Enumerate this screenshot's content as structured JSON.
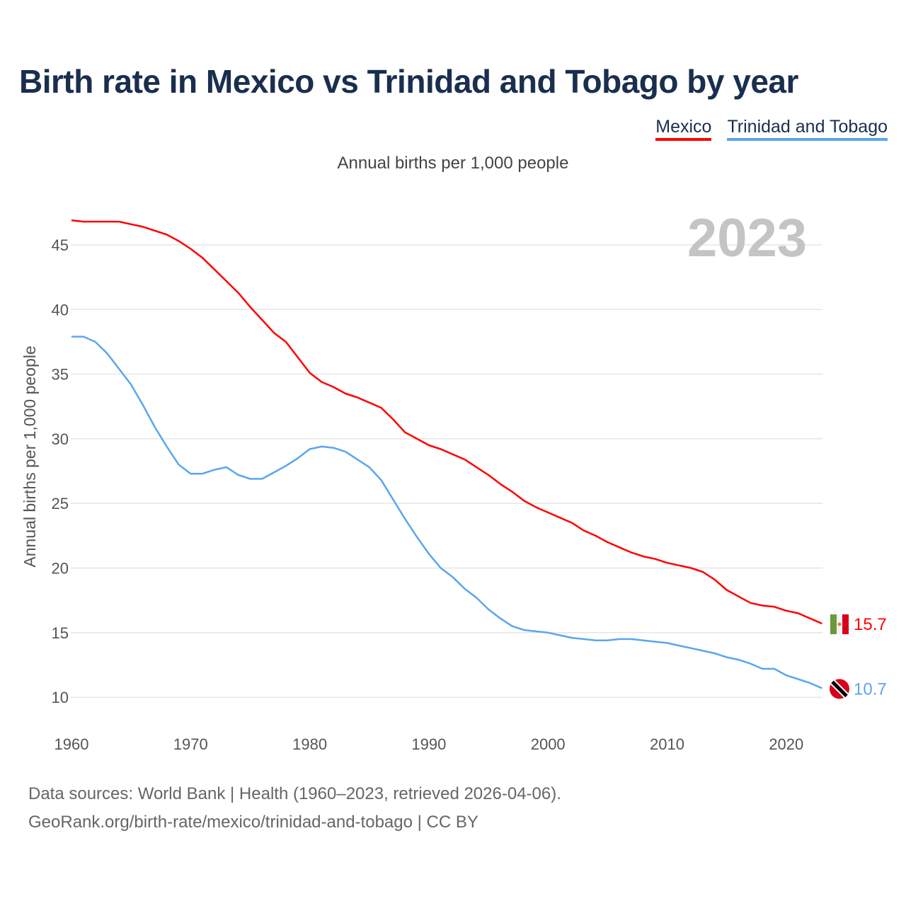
{
  "title": "Birth rate in Mexico vs Trinidad and Tobago by year",
  "subtitle": "Annual births per 1,000 people",
  "footer": {
    "line1": "Data sources: World Bank | Health (1960–2023, retrieved 2026-04-06).",
    "line2": "GeoRank.org/birth-rate/mexico/trinidad-and-tobago | CC BY"
  },
  "chart_data": {
    "type": "line",
    "title": "Birth rate in Mexico vs Trinidad and Tobago by year",
    "ylabel": "Annual births per 1,000 people",
    "xlabel": "",
    "year_label": "2023",
    "xlim": [
      1960,
      2023
    ],
    "ylim": [
      10,
      47
    ],
    "x_ticks": [
      1960,
      1970,
      1980,
      1990,
      2000,
      2010,
      2020
    ],
    "y_ticks": [
      10,
      15,
      20,
      25,
      30,
      35,
      40,
      45
    ],
    "grid": true,
    "legend_position": "top-right",
    "x_start": 1960,
    "series": [
      {
        "name": "Mexico",
        "color": "#ff0000",
        "end_label": "15.7",
        "flag": "mexico-flag",
        "values": [
          46.9,
          46.8,
          46.8,
          46.8,
          46.8,
          46.6,
          46.4,
          46.1,
          45.8,
          45.3,
          44.7,
          44.0,
          43.1,
          42.2,
          41.3,
          40.2,
          39.2,
          38.2,
          37.5,
          36.3,
          35.1,
          34.4,
          34.0,
          33.5,
          33.2,
          32.8,
          32.4,
          31.5,
          30.5,
          30.0,
          29.5,
          29.2,
          28.8,
          28.4,
          27.8,
          27.2,
          26.5,
          25.9,
          25.2,
          24.7,
          24.3,
          23.9,
          23.5,
          22.9,
          22.5,
          22.0,
          21.6,
          21.2,
          20.9,
          20.7,
          20.4,
          20.2,
          20.0,
          19.7,
          19.1,
          18.3,
          17.8,
          17.3,
          17.1,
          17.0,
          16.7,
          16.5,
          16.1,
          15.7
        ]
      },
      {
        "name": "Trinidad and Tobago",
        "color": "#5aa6ee",
        "end_label": "10.7",
        "flag": "trinidad-flag",
        "values": [
          37.9,
          37.9,
          37.5,
          36.6,
          35.4,
          34.2,
          32.6,
          30.9,
          29.4,
          28.0,
          27.3,
          27.3,
          27.6,
          27.8,
          27.2,
          26.9,
          26.9,
          27.4,
          27.9,
          28.5,
          29.2,
          29.4,
          29.3,
          29.0,
          28.4,
          27.8,
          26.8,
          25.3,
          23.8,
          22.4,
          21.1,
          20.0,
          19.3,
          18.4,
          17.7,
          16.8,
          16.1,
          15.5,
          15.2,
          15.1,
          15.0,
          14.8,
          14.6,
          14.5,
          14.4,
          14.4,
          14.5,
          14.5,
          14.4,
          14.3,
          14.2,
          14.0,
          13.8,
          13.6,
          13.4,
          13.1,
          12.9,
          12.6,
          12.2,
          12.2,
          11.7,
          11.4,
          11.1,
          10.7
        ]
      }
    ]
  }
}
